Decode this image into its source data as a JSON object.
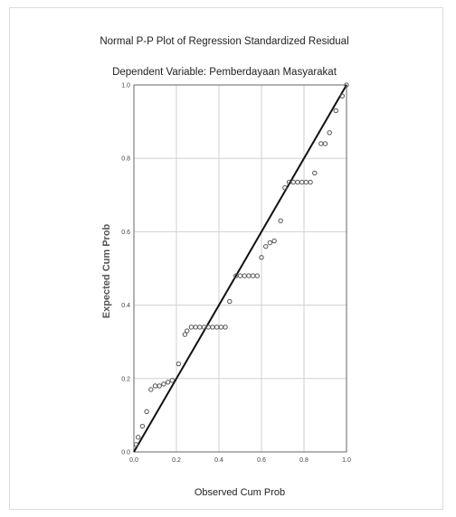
{
  "chart_data": {
    "type": "scatter",
    "title": "Normal P-P Plot of Regression Standardized Residual",
    "subtitle": "Dependent Variable: Pemberdayaan Masyarakat",
    "xlabel": "Observed Cum Prob",
    "ylabel": "Expected Cum Prob",
    "xlim": [
      0,
      1
    ],
    "ylim": [
      0,
      1
    ],
    "xticks": [
      "0.0",
      "0.2",
      "0.4",
      "0.6",
      "0.8",
      "1.0"
    ],
    "yticks": [
      "0.0",
      "0.2",
      "0.4",
      "0.6",
      "0.8",
      "1.0"
    ],
    "grid": true,
    "reference_line": [
      [
        0,
        0
      ],
      [
        1,
        1
      ]
    ],
    "colors": {
      "points": "#555555",
      "line": "#111111",
      "grid": "#d0d0d0"
    },
    "points": [
      {
        "x": 0.01,
        "y": 0.02
      },
      {
        "x": 0.02,
        "y": 0.04
      },
      {
        "x": 0.04,
        "y": 0.07
      },
      {
        "x": 0.06,
        "y": 0.11
      },
      {
        "x": 0.08,
        "y": 0.17
      },
      {
        "x": 0.1,
        "y": 0.18
      },
      {
        "x": 0.12,
        "y": 0.18
      },
      {
        "x": 0.14,
        "y": 0.185
      },
      {
        "x": 0.16,
        "y": 0.19
      },
      {
        "x": 0.18,
        "y": 0.195
      },
      {
        "x": 0.21,
        "y": 0.24
      },
      {
        "x": 0.24,
        "y": 0.32
      },
      {
        "x": 0.25,
        "y": 0.33
      },
      {
        "x": 0.27,
        "y": 0.34
      },
      {
        "x": 0.29,
        "y": 0.34
      },
      {
        "x": 0.31,
        "y": 0.34
      },
      {
        "x": 0.33,
        "y": 0.34
      },
      {
        "x": 0.35,
        "y": 0.34
      },
      {
        "x": 0.37,
        "y": 0.34
      },
      {
        "x": 0.39,
        "y": 0.34
      },
      {
        "x": 0.41,
        "y": 0.34
      },
      {
        "x": 0.43,
        "y": 0.34
      },
      {
        "x": 0.45,
        "y": 0.41
      },
      {
        "x": 0.48,
        "y": 0.48
      },
      {
        "x": 0.5,
        "y": 0.48
      },
      {
        "x": 0.52,
        "y": 0.48
      },
      {
        "x": 0.54,
        "y": 0.48
      },
      {
        "x": 0.56,
        "y": 0.48
      },
      {
        "x": 0.58,
        "y": 0.48
      },
      {
        "x": 0.6,
        "y": 0.53
      },
      {
        "x": 0.62,
        "y": 0.56
      },
      {
        "x": 0.64,
        "y": 0.57
      },
      {
        "x": 0.66,
        "y": 0.575
      },
      {
        "x": 0.69,
        "y": 0.63
      },
      {
        "x": 0.71,
        "y": 0.72
      },
      {
        "x": 0.73,
        "y": 0.735
      },
      {
        "x": 0.75,
        "y": 0.735
      },
      {
        "x": 0.77,
        "y": 0.735
      },
      {
        "x": 0.79,
        "y": 0.735
      },
      {
        "x": 0.81,
        "y": 0.735
      },
      {
        "x": 0.83,
        "y": 0.735
      },
      {
        "x": 0.85,
        "y": 0.76
      },
      {
        "x": 0.88,
        "y": 0.84
      },
      {
        "x": 0.9,
        "y": 0.84
      },
      {
        "x": 0.92,
        "y": 0.87
      },
      {
        "x": 0.95,
        "y": 0.93
      },
      {
        "x": 0.98,
        "y": 0.97
      },
      {
        "x": 1.0,
        "y": 1.0
      }
    ]
  }
}
